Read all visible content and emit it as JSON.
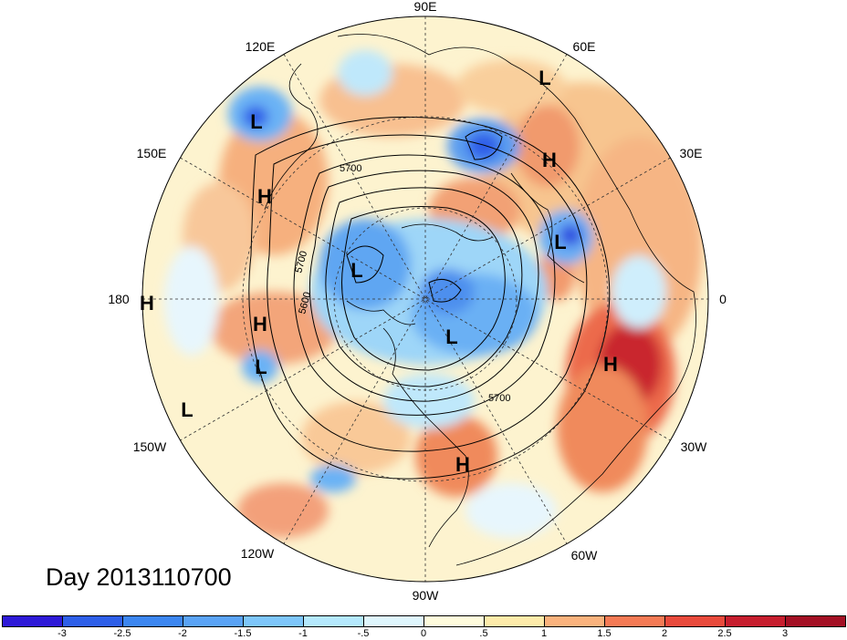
{
  "map": {
    "date_label": "Day 2013110700",
    "longitude_labels": [
      "90E",
      "60E",
      "30E",
      "0",
      "30W",
      "60W",
      "90W",
      "120W",
      "150W",
      "180",
      "150E",
      "120E"
    ],
    "contour_labels": [
      "5700",
      "5700",
      "5600",
      "5700"
    ],
    "pressure_centers": [
      {
        "type": "L",
        "region": "East Asia"
      },
      {
        "type": "L",
        "region": "Arabia"
      },
      {
        "type": "H",
        "region": "Central Asia"
      },
      {
        "type": "H",
        "region": "Siberia east"
      },
      {
        "type": "L",
        "region": "Europe north"
      },
      {
        "type": "L",
        "region": "Arctic Siberia"
      },
      {
        "type": "L",
        "region": "Canadian Arctic"
      },
      {
        "type": "H",
        "region": "Date line"
      },
      {
        "type": "H",
        "region": "North Pacific"
      },
      {
        "type": "L",
        "region": "Gulf of Alaska"
      },
      {
        "type": "L",
        "region": "Subtropical Pacific"
      },
      {
        "type": "H",
        "region": "Atlantic subtropics"
      },
      {
        "type": "H",
        "region": "Gulf of Mexico"
      }
    ],
    "colors": {
      "ocean_background": "#fdfae0"
    }
  },
  "colorbar": {
    "ticks": [
      "-3",
      "-2.5",
      "-2",
      "-1.5",
      "-1",
      "-.5",
      "0",
      ".5",
      "1",
      "1.5",
      "2",
      "2.5",
      "3"
    ],
    "colors": [
      "#2e1ad7",
      "#2e5fe8",
      "#3c86f0",
      "#5aa3f5",
      "#7ec6fa",
      "#b4e8fc",
      "#dff6fd",
      "#fefbdc",
      "#fdebaa",
      "#f9b27d",
      "#f47a55",
      "#e84a3c",
      "#c61e2e",
      "#a31024"
    ]
  }
}
